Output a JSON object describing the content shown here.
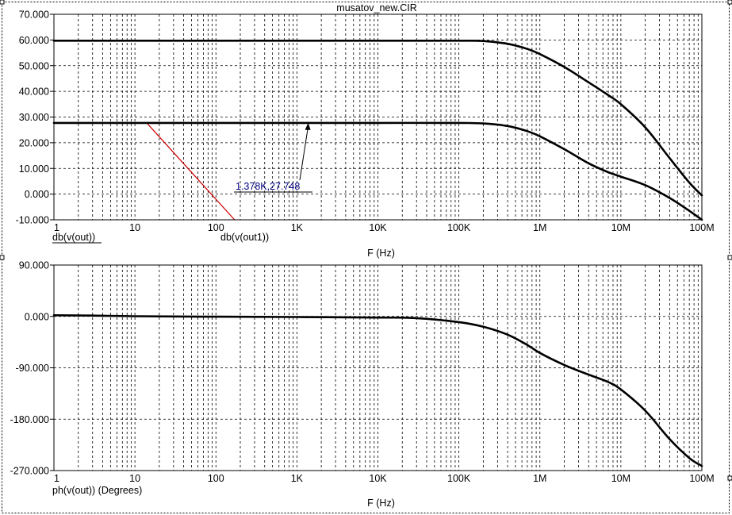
{
  "window": {
    "title": "musatov_new.CIR"
  },
  "colors": {
    "trace": "#000000",
    "cursor": "#cc0000",
    "label": "#000080",
    "grid": "#000000"
  },
  "chart_data": [
    {
      "type": "line",
      "xscale": "log",
      "xlim": [
        1,
        100000000
      ],
      "ylim": [
        -10,
        70
      ],
      "xlabel": "F (Hz)",
      "x_ticks": [
        1,
        10,
        100,
        1000,
        10000,
        100000,
        1000000,
        10000000,
        100000000
      ],
      "x_tick_labels": [
        "1",
        "10",
        "100",
        "1K",
        "10K",
        "100K",
        "1M",
        "10M",
        "100M"
      ],
      "y_ticks": [
        70,
        60,
        50,
        40,
        30,
        20,
        10,
        0,
        -10
      ],
      "y_tick_labels": [
        "70.000",
        "60.000",
        "50.000",
        "40.000",
        "30.000",
        "20.000",
        "10.000",
        "0.000",
        "-10.000"
      ],
      "grid": true,
      "series": [
        {
          "name": "db(v(out))",
          "x": [
            1,
            10,
            100,
            1000,
            10000,
            100000,
            200000,
            400000,
            700000,
            1000000,
            2000000,
            4000000,
            7000000,
            10000000,
            20000000,
            40000000,
            70000000,
            100000000
          ],
          "y": [
            59.7,
            59.7,
            59.7,
            59.7,
            59.7,
            59.7,
            59.6,
            58.5,
            56.5,
            54.5,
            49.5,
            43.5,
            38.5,
            35.0,
            26.0,
            14.0,
            4.5,
            -0.5
          ]
        },
        {
          "name": "db(v(out1))",
          "x": [
            1,
            10,
            100,
            1000,
            10000,
            100000,
            200000,
            400000,
            700000,
            1000000,
            2000000,
            4000000,
            7000000,
            10000000,
            20000000,
            40000000,
            70000000,
            100000000
          ],
          "y": [
            27.7,
            27.7,
            27.7,
            27.7,
            27.7,
            27.7,
            27.5,
            26.5,
            24.5,
            22.5,
            17.5,
            12.0,
            8.5,
            6.8,
            3.5,
            -1.5,
            -6.5,
            -10.0
          ]
        }
      ],
      "annotations": [
        {
          "text": "1.378K,27.748",
          "x": 1378,
          "y": 27.748
        }
      ],
      "cursor_line": {
        "x": [
          14,
          170
        ],
        "y": [
          27.7,
          -10
        ]
      }
    },
    {
      "type": "line",
      "xscale": "log",
      "xlim": [
        1,
        100000000
      ],
      "ylim": [
        -270,
        90
      ],
      "xlabel": "F (Hz)",
      "x_ticks": [
        1,
        10,
        100,
        1000,
        10000,
        100000,
        1000000,
        10000000,
        100000000
      ],
      "x_tick_labels": [
        "1",
        "10",
        "100",
        "1K",
        "10K",
        "100K",
        "1M",
        "10M",
        "100M"
      ],
      "y_ticks": [
        90,
        0,
        -90,
        -180,
        -270
      ],
      "y_tick_labels": [
        "90.000",
        "0.000",
        "-90.000",
        "-180.000",
        "-270.000"
      ],
      "grid": true,
      "series": [
        {
          "name": "ph(v(out)) (Degrees)",
          "x": [
            1,
            3,
            10,
            100,
            1000,
            10000,
            30000,
            100000,
            200000,
            400000,
            700000,
            1000000,
            2000000,
            4000000,
            7000000,
            10000000,
            20000000,
            40000000,
            70000000,
            100000000
          ],
          "y": [
            2,
            1.5,
            0.3,
            -0.5,
            -1,
            -2,
            -3,
            -10,
            -18,
            -32,
            -50,
            -64,
            -85,
            -102,
            -115,
            -128,
            -165,
            -215,
            -248,
            -262
          ]
        }
      ]
    }
  ]
}
